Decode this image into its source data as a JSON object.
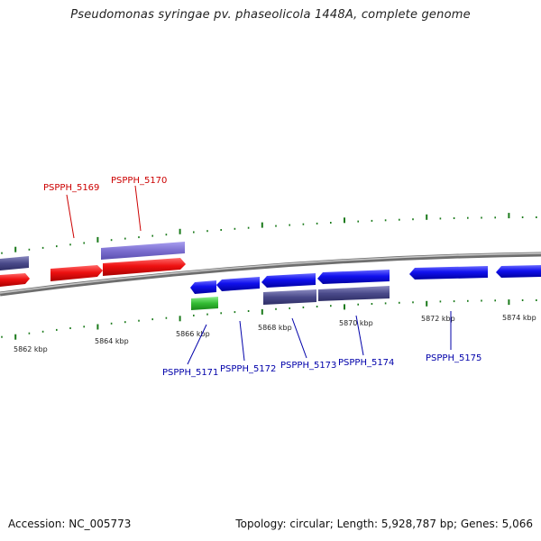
{
  "title": "Pseudomonas syringae pv. phaseolicola 1448A, complete genome",
  "footer": {
    "accession": "Accession: NC_005773",
    "topology": "Topology: circular; Length: 5,928,787 bp; Genes: 5,066"
  },
  "colors": {
    "backbone": "#8a8a8a",
    "tick": "#1a7a1a",
    "forward_gene": "#ee1111",
    "forward_label": "#cc0000",
    "reverse_gene": "#1111ee",
    "reverse_label": "#0000aa",
    "cds_forward": "#7c6fd0",
    "cds_reverse": "#4a4a8a",
    "rna": "#33bb33"
  },
  "scale": {
    "unit": "kbp",
    "labels": [
      "5862 kbp",
      "5864 kbp",
      "5866 kbp",
      "5868 kbp",
      "5870 kbp",
      "5872 kbp",
      "5874 kbp"
    ]
  },
  "genes": [
    {
      "id": "PSPPH_5169",
      "strand": "forward"
    },
    {
      "id": "PSPPH_5170",
      "strand": "forward"
    },
    {
      "id": "PSPPH_5171",
      "strand": "reverse"
    },
    {
      "id": "PSPPH_5172",
      "strand": "reverse"
    },
    {
      "id": "PSPPH_5173",
      "strand": "reverse"
    },
    {
      "id": "PSPPH_5174",
      "strand": "reverse"
    },
    {
      "id": "PSPPH_5175",
      "strand": "reverse"
    }
  ]
}
